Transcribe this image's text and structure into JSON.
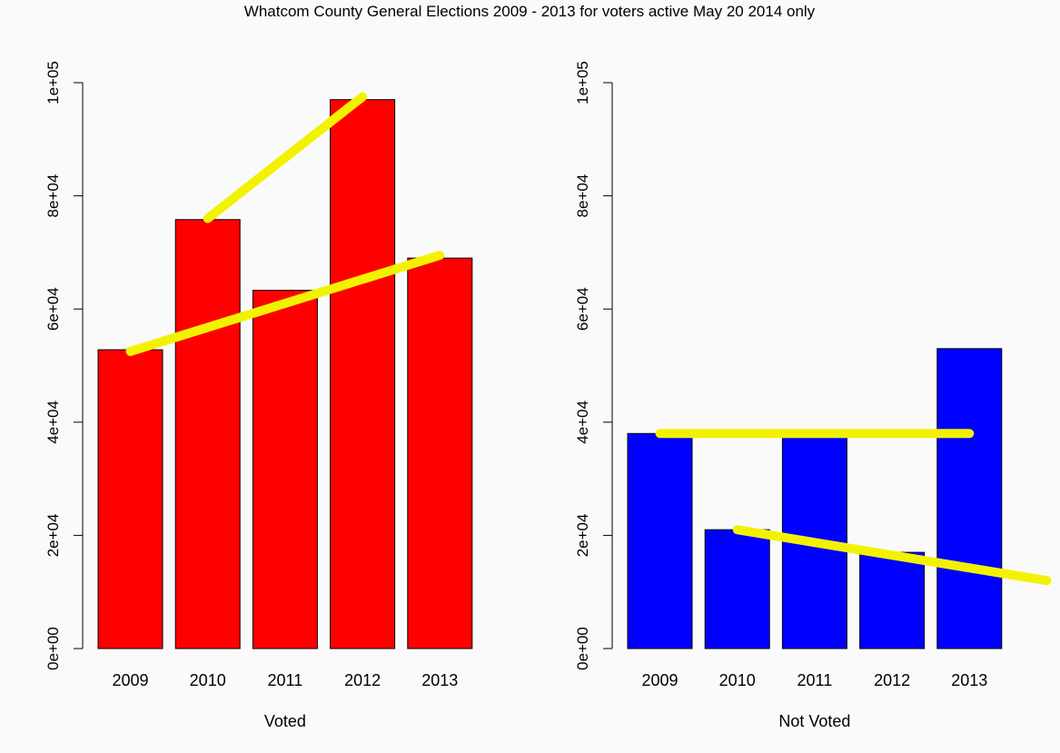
{
  "title": "Whatcom County General Elections 2009 - 2013 for voters active May 20 2014 only",
  "colors": {
    "background": "#fafafa",
    "voted_bar": "#ff0000",
    "not_voted_bar": "#0000ff",
    "trend_line": "#f2f200",
    "bar_border": "#000000"
  },
  "chart_data": [
    {
      "type": "bar",
      "title": "",
      "xlabel": "Voted",
      "ylabel": "",
      "categories": [
        "2009",
        "2010",
        "2011",
        "2012",
        "2013"
      ],
      "values": [
        52800,
        75800,
        63300,
        97000,
        69000
      ],
      "ylim": [
        0,
        100000
      ],
      "yticks": [
        "0e+00",
        "2e+04",
        "4e+04",
        "6e+04",
        "8e+04",
        "1e+05"
      ],
      "grid": false,
      "legend": "none",
      "bar_color": "#ff0000",
      "trend_lines": [
        {
          "from": {
            "x": "2009",
            "y": 52500
          },
          "to": {
            "x": "2013",
            "y": 69500
          }
        },
        {
          "from": {
            "x": "2010",
            "y": 76000
          },
          "to": {
            "x": "2012",
            "y": 97500
          }
        }
      ]
    },
    {
      "type": "bar",
      "title": "",
      "xlabel": "Not Voted",
      "ylabel": "",
      "categories": [
        "2009",
        "2010",
        "2011",
        "2012",
        "2013"
      ],
      "values": [
        38000,
        21000,
        37500,
        17000,
        53000
      ],
      "ylim": [
        0,
        100000
      ],
      "yticks": [
        "0e+00",
        "2e+04",
        "4e+04",
        "6e+04",
        "8e+04",
        "1e+05"
      ],
      "grid": false,
      "legend": "none",
      "bar_color": "#0000ff",
      "trend_lines": [
        {
          "from": {
            "x": "2009",
            "y": 38000
          },
          "to": {
            "x": "2013",
            "y": 38000
          }
        },
        {
          "from": {
            "x": "2010",
            "y": 21000
          },
          "to": {
            "x": "2014",
            "y": 12000
          }
        }
      ]
    }
  ]
}
